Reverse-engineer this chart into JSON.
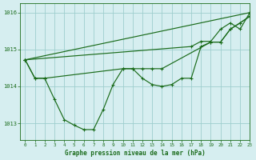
{
  "title": "Graphe pression niveau de la mer (hPa)",
  "background_color": "#d6eef0",
  "grid_color": "#9ecece",
  "line_color": "#1a6b1a",
  "xlim": [
    -0.5,
    23
  ],
  "ylim": [
    1012.55,
    1016.25
  ],
  "yticks": [
    1013,
    1014,
    1015,
    1016
  ],
  "xticks": [
    0,
    1,
    2,
    3,
    4,
    5,
    6,
    7,
    8,
    9,
    10,
    11,
    12,
    13,
    14,
    15,
    16,
    17,
    18,
    19,
    20,
    21,
    22,
    23
  ],
  "series": [
    {
      "x": [
        0,
        1,
        2,
        10,
        11,
        12,
        13,
        14,
        19,
        20,
        21,
        22,
        23
      ],
      "y": [
        1014.72,
        1014.22,
        1014.22,
        1014.48,
        1014.48,
        1014.48,
        1014.48,
        1014.48,
        1015.2,
        1015.2,
        1015.55,
        1015.72,
        1015.9
      ]
    },
    {
      "x": [
        0,
        1,
        2,
        3,
        4,
        5,
        6,
        7,
        8,
        9,
        10,
        11,
        12,
        13,
        14,
        15,
        16,
        17,
        18,
        19,
        20,
        21,
        22,
        23
      ],
      "y": [
        1014.72,
        1014.22,
        1014.22,
        1013.65,
        1013.1,
        1012.95,
        1012.83,
        1012.83,
        1013.38,
        1014.05,
        1014.48,
        1014.48,
        1014.22,
        1014.05,
        1014.0,
        1014.05,
        1014.22,
        1014.22,
        1015.08,
        1015.2,
        1015.2,
        1015.55,
        1015.72,
        1015.9
      ]
    },
    {
      "x": [
        0,
        23
      ],
      "y": [
        1014.72,
        1016.0
      ]
    },
    {
      "x": [
        0,
        17,
        18,
        19,
        20,
        21,
        22,
        23
      ],
      "y": [
        1014.72,
        1015.08,
        1015.22,
        1015.22,
        1015.55,
        1015.72,
        1015.55,
        1016.0
      ]
    }
  ]
}
